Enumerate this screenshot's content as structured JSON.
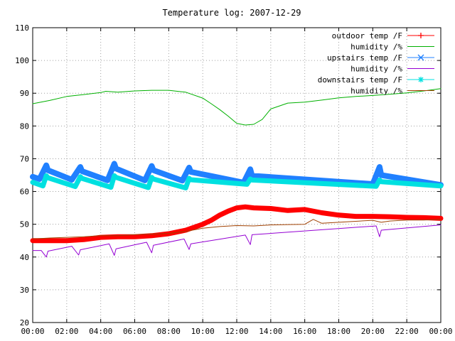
{
  "chart_data": {
    "type": "line",
    "title": "Temperature log: 2007-12-29",
    "xlabel": "",
    "ylabel": "",
    "xlim": [
      0,
      24
    ],
    "ylim": [
      20,
      110
    ],
    "x_ticks": [
      "00:00",
      "02:00",
      "04:00",
      "06:00",
      "08:00",
      "10:00",
      "12:00",
      "14:00",
      "16:00",
      "18:00",
      "20:00",
      "22:00",
      "00:00"
    ],
    "y_ticks": [
      "20",
      "30",
      "40",
      "50",
      "60",
      "70",
      "80",
      "90",
      "100",
      "110"
    ],
    "grid": true,
    "legend_position": "top-right",
    "series": [
      {
        "name": "outdoor temp /F",
        "color": "#ff0000",
        "marker": "plus",
        "x": [
          0,
          1,
          2,
          3,
          4,
          5,
          6,
          7,
          8,
          9,
          10,
          10.5,
          11,
          11.5,
          12,
          12.5,
          13,
          14,
          15,
          16,
          17,
          18,
          19,
          20,
          21,
          22,
          23,
          24
        ],
        "y": [
          45,
          45,
          45,
          45.3,
          46,
          46.2,
          46.2,
          46.5,
          47.1,
          48.2,
          50,
          51.2,
          52.8,
          54,
          55,
          55.3,
          55,
          54.8,
          54.2,
          54.5,
          53.5,
          52.8,
          52.4,
          52.4,
          52.3,
          52.1,
          52,
          51.8
        ]
      },
      {
        "name": "humidity /%",
        "color": "#00b000",
        "marker": "none",
        "x": [
          0,
          1,
          2,
          3,
          4,
          4.3,
          5,
          6,
          7,
          8,
          9,
          10,
          10.5,
          11,
          11.5,
          12,
          12.5,
          13,
          13.5,
          14,
          15,
          16,
          17,
          18,
          19,
          20,
          21,
          22,
          23,
          24
        ],
        "y": [
          86.8,
          87.8,
          89,
          89.6,
          90.2,
          90.6,
          90.3,
          90.7,
          90.9,
          90.9,
          90.3,
          88.5,
          86.8,
          85,
          83,
          80.8,
          80.3,
          80.5,
          82,
          85.2,
          87,
          87.3,
          87.9,
          88.6,
          89,
          89.3,
          89.7,
          90.1,
          90.7,
          91.4
        ]
      },
      {
        "name": "upstairs temp /F",
        "color": "#2080ff",
        "marker": "cross",
        "x": [
          0,
          0.4,
          0.8,
          0.9,
          2.3,
          2.8,
          2.9,
          4.4,
          4.8,
          4.9,
          6.6,
          7.0,
          7.1,
          8.8,
          9.2,
          9.3,
          12.4,
          12.8,
          12.9,
          20.0,
          20.4,
          20.5,
          24
        ],
        "y": [
          64.5,
          63.8,
          68,
          66.5,
          63.6,
          67.5,
          66.2,
          63.4,
          68.5,
          67,
          63.4,
          67.8,
          66.5,
          63.3,
          67.3,
          66,
          62.7,
          66.8,
          64.8,
          62.3,
          67.5,
          65,
          62
        ]
      },
      {
        "name": "humidity /%",
        "color": "#9400d3",
        "marker": "none",
        "x": [
          0,
          0.5,
          0.8,
          0.9,
          2.3,
          2.7,
          2.8,
          4.5,
          4.8,
          4.9,
          6.7,
          7.0,
          7.1,
          8.9,
          9.2,
          9.3,
          12.5,
          12.8,
          12.9,
          20.2,
          20.4,
          20.5,
          24
        ],
        "y": [
          42,
          42,
          40,
          41.8,
          43.3,
          40.6,
          42.2,
          44,
          40.5,
          42.5,
          44.5,
          41.3,
          43.6,
          45.5,
          42.3,
          44,
          46.7,
          43.8,
          46.8,
          49.5,
          46.2,
          48.2,
          49.8
        ]
      },
      {
        "name": "downstairs temp /F",
        "color": "#00e0e0",
        "marker": "star",
        "x": [
          0,
          0.6,
          0.8,
          0.9,
          2.5,
          2.8,
          2.9,
          4.6,
          4.8,
          4.9,
          6.8,
          7.0,
          7.1,
          9.0,
          9.2,
          9.3,
          12.6,
          12.8,
          12.9,
          20.2,
          20.4,
          20.5,
          24
        ],
        "y": [
          62.8,
          61.7,
          64.8,
          64.2,
          61.5,
          64.5,
          64,
          61.3,
          64.8,
          64.3,
          61.2,
          64.3,
          63.8,
          61.1,
          64,
          63.6,
          62.2,
          63.8,
          63.5,
          61.6,
          63.5,
          63,
          61.7
        ]
      },
      {
        "name": "humidity /%",
        "color": "#a04000",
        "marker": "none",
        "x": [
          0,
          1,
          2,
          3,
          4,
          5,
          6,
          7,
          8,
          9,
          10,
          11,
          12,
          13,
          14,
          15,
          16,
          16.5,
          17,
          18,
          19,
          20,
          20.5,
          21,
          22,
          23,
          24
        ],
        "y": [
          45.5,
          45.8,
          46,
          46.2,
          46.5,
          46.5,
          46.8,
          47,
          47.2,
          47.8,
          48.8,
          49.3,
          49.6,
          49.5,
          49.8,
          49.9,
          50,
          51.5,
          50.3,
          50.6,
          50.9,
          51.2,
          50.6,
          51,
          51.3,
          51.3,
          51.5
        ]
      }
    ]
  }
}
